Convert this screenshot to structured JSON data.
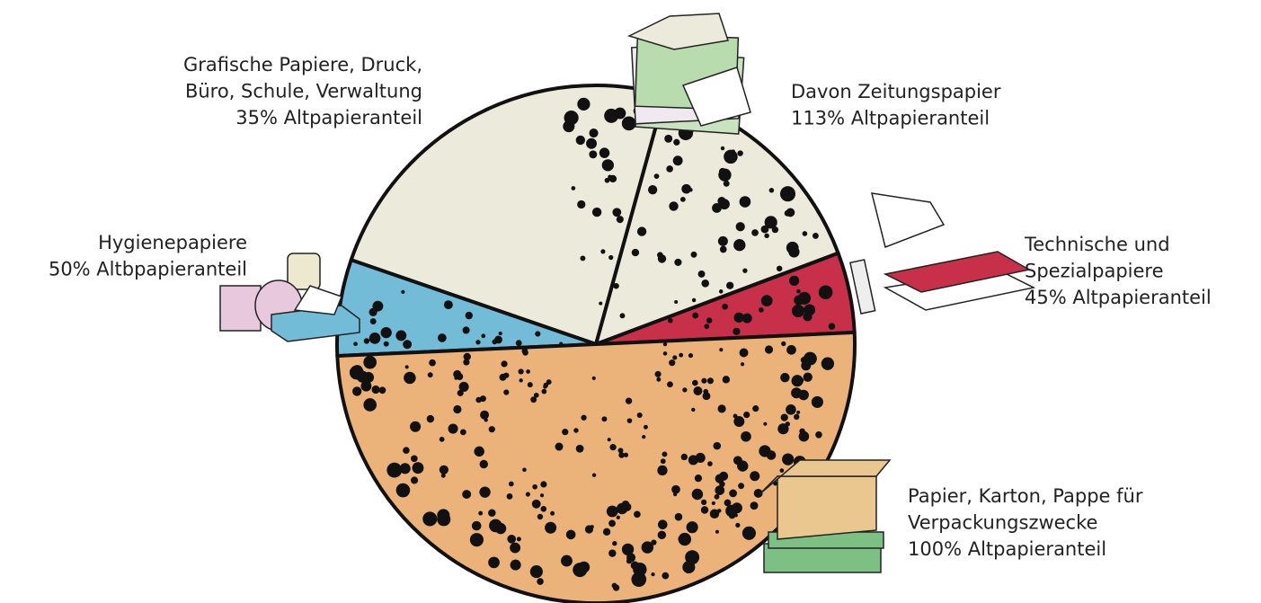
{
  "chart_data": {
    "type": "pie",
    "categories": [
      [
        "Technische und",
        "Spezialpapiere",
        "45% Altpapieranteil"
      ],
      [
        "Davon Zeitungspapier",
        "113% Altpapieranteil"
      ],
      [
        "Grafische Papiere, Druck,",
        "Büro, Schule, Verwaltung",
        "35% Altpapieranteil"
      ],
      [
        "Hygienepapiere",
        "50% Altbpapieranteil"
      ],
      [
        "Papier, Karton, Pappe für",
        "Verpackungszwecke",
        "100% Altpapieranteil"
      ]
    ],
    "values": [
      5,
      15,
      24,
      6,
      50
    ],
    "colors": [
      "#c8304a",
      "#eceada",
      "#eceada",
      "#72bcd8",
      "#ebb37a"
    ]
  }
}
